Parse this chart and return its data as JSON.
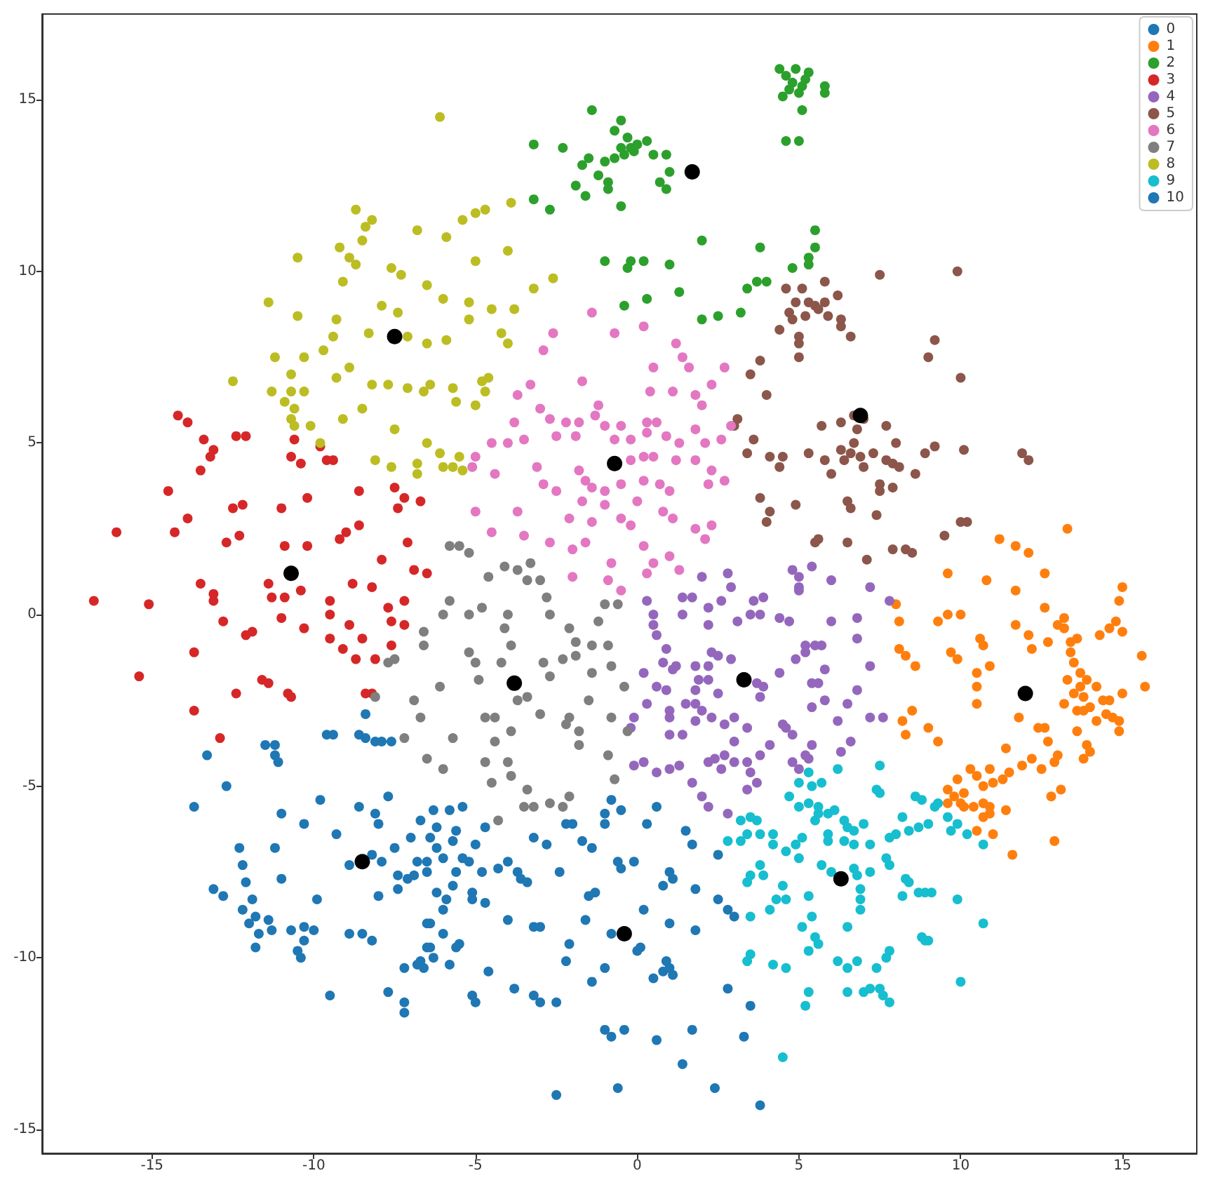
{
  "chart_data": {
    "type": "scatter",
    "xlim": [
      -18.4,
      17.3
    ],
    "ylim": [
      -15.7,
      17.5
    ],
    "xticks": [
      -15,
      -10,
      -5,
      0,
      5,
      10,
      15
    ],
    "yticks": [
      -15,
      -10,
      -5,
      0,
      5,
      10,
      15
    ],
    "grid": false,
    "legend": "top right",
    "marker": "circle",
    "series": [
      {
        "name": "0",
        "color": "#1f77b4",
        "x": [
          -8.4,
          -8.6,
          -8.4,
          -9.6,
          -9.4,
          -8.1,
          -7.9,
          -7.6,
          -11.2,
          -11.5,
          -11.2,
          -11.1,
          -13.3,
          -12.7,
          -13.7,
          -11.0,
          -10.3,
          -9.8,
          -9.3,
          -8.6,
          -8.1,
          -7.7,
          -8.0,
          -7.0,
          -6.7,
          -7.5,
          -12.3,
          -11.2,
          -12.2,
          -12.1,
          -11.0,
          -8.9,
          -8.2,
          -7.9,
          -6.8,
          -6.5,
          -6.9,
          -7.4,
          -7.1,
          -7.4,
          -8.0,
          -13.1,
          -12.8,
          -12.2,
          -11.9,
          -11.8,
          -12.0,
          -11.7,
          -11.8,
          -11.3,
          -11.4,
          -10.7,
          -10.3,
          -10.0,
          -10.5,
          -10.4,
          -10.3,
          -9.9,
          -8.9,
          -8.5,
          -8.2,
          -9.5,
          -7.7,
          -7.2,
          -7.2,
          -7.2,
          -6.8,
          -6.6,
          -6.5,
          -6.5,
          -6.3,
          -5.8,
          -5.4,
          -6.2,
          -5.7,
          -5.6,
          -5.0,
          -4.7,
          -6.4,
          -6.2,
          -6.0,
          -6.5,
          -5.4,
          -5.2,
          -4.8,
          -5.6,
          -5.7,
          -5.1,
          -6.2,
          -5.9,
          -6.0,
          -5.1,
          -4.7,
          -6.4,
          -6.0,
          -6.4,
          -5.5,
          -5.6,
          -6.7,
          -6.3,
          -5.8,
          -5.1,
          -5.0,
          -4.6
        ],
        "values": [
          -2.9,
          -3.5,
          -3.6,
          -3.5,
          -3.5,
          -3.7,
          -3.7,
          -3.7,
          -3.8,
          -3.8,
          -4.1,
          -4.3,
          -4.1,
          -5.0,
          -5.6,
          -5.8,
          -6.1,
          -5.4,
          -6.4,
          -5.6,
          -5.8,
          -5.3,
          -6.1,
          -6.5,
          -6.0,
          -6.8,
          -6.8,
          -6.8,
          -7.3,
          -7.8,
          -7.7,
          -7.3,
          -7.0,
          -7.2,
          -7.2,
          -7.5,
          -7.6,
          -7.6,
          -7.7,
          -8.0,
          -8.2,
          -8.0,
          -8.2,
          -8.6,
          -8.3,
          -8.8,
          -9.0,
          -9.3,
          -9.7,
          -9.2,
          -8.9,
          -9.2,
          -9.1,
          -9.2,
          -9.8,
          -10.0,
          -9.5,
          -8.3,
          -9.3,
          -9.3,
          -9.5,
          -11.1,
          -11.0,
          -11.3,
          -11.6,
          -10.3,
          -10.2,
          -10.3,
          -9.0,
          -9.7,
          -5.7,
          -5.7,
          -5.6,
          -6.2,
          -6.6,
          -6.3,
          -6.7,
          -6.2,
          -6.5,
          -6.8,
          -7.1,
          -7.2,
          -7.1,
          -7.2,
          -7.5,
          -7.5,
          -7.9,
          -8.1,
          -8.1,
          -8.3,
          -8.6,
          -8.3,
          -8.4,
          -9.0,
          -9.3,
          -9.7,
          -9.6,
          -9.7,
          -10.1,
          -10.0,
          -10.2,
          -11.1,
          -11.3,
          -10.4
        ]
      },
      {
        "name": "1",
        "color": "#ff7f0e",
        "x": [
          13.3,
          11.2,
          11.7,
          12.1,
          9.6,
          10.8,
          12.6,
          11.7,
          15.0,
          14.9,
          8.0,
          8.1,
          9.3,
          9.6,
          10.0,
          12.6,
          11.7,
          12.1,
          12.2,
          13.0,
          13.2,
          13.2,
          13.4,
          13.4,
          13.5,
          13.7,
          13.9,
          12.7,
          13.6,
          14.3,
          14.6,
          14.8,
          15.0,
          15.6,
          15.7,
          9.7,
          9.9,
          10.6,
          10.7,
          10.9,
          10.5,
          10.5,
          10.5,
          8.1,
          8.3,
          8.6,
          11.8,
          12.6,
          13.2,
          13.3,
          13.5,
          13.7,
          13.8,
          13.6,
          13.8,
          14.2,
          14.0,
          14.4,
          14.6,
          14.2,
          14.5,
          14.7,
          14.9,
          14.9,
          15.0,
          8.2,
          8.5,
          8.3,
          9.0,
          9.3,
          12.4,
          12.7,
          13.6,
          13.9,
          14.0,
          13.8,
          11.4,
          13.0,
          12.9,
          12.2,
          11.9,
          12.5,
          13.1,
          12.8,
          10.3,
          10.9,
          11.3,
          11.5,
          11.0,
          10.5,
          10.7,
          10.1,
          9.9,
          9.6,
          9.8,
          9.6,
          10.0,
          10.1,
          10.4,
          10.7,
          10.9,
          10.9,
          10.7,
          11.4,
          10.5,
          11.0,
          12.9,
          11.6
        ],
        "values": [
          2.5,
          2.2,
          2.0,
          1.8,
          1.2,
          1.0,
          1.2,
          0.7,
          0.8,
          0.4,
          0.3,
          -0.2,
          -0.2,
          0.0,
          0.0,
          0.2,
          -0.3,
          -0.6,
          -1.0,
          -0.3,
          -0.1,
          -0.4,
          -0.8,
          -1.1,
          -1.4,
          -1.7,
          -1.9,
          -0.8,
          -0.7,
          -0.6,
          -0.4,
          -0.2,
          -0.5,
          -1.2,
          -2.1,
          -1.1,
          -1.3,
          -0.7,
          -0.9,
          -1.5,
          -1.7,
          -2.1,
          -2.6,
          -1.0,
          -1.2,
          -1.5,
          -3.0,
          -3.3,
          -2.6,
          -1.9,
          -2.3,
          -2.1,
          -2.4,
          -2.8,
          -2.8,
          -2.1,
          -2.7,
          -2.5,
          -2.5,
          -3.1,
          -2.9,
          -3.0,
          -3.4,
          -3.1,
          -2.3,
          -3.1,
          -2.8,
          -3.5,
          -3.3,
          -3.7,
          -3.3,
          -3.7,
          -3.4,
          -3.8,
          -4.0,
          -4.2,
          -3.9,
          -4.1,
          -4.3,
          -4.2,
          -4.4,
          -4.5,
          -5.1,
          -5.3,
          -4.5,
          -4.5,
          -4.8,
          -4.6,
          -4.9,
          -4.7,
          -5.0,
          -5.2,
          -4.8,
          -5.1,
          -5.3,
          -5.5,
          -5.5,
          -5.6,
          -5.6,
          -5.5,
          -5.6,
          -5.8,
          -5.9,
          -5.7,
          -6.3,
          -6.4,
          -6.6,
          -7.0
        ]
      },
      {
        "name": "2",
        "color": "#2ca02c",
        "x": [
          -1.4,
          -0.5,
          -0.7,
          -0.3,
          0.3,
          -0.1,
          -0.4,
          -0.7,
          -1.0,
          0.5,
          0.9,
          1.0,
          0.7,
          0.9,
          -2.3,
          -3.2,
          -1.5,
          -1.7,
          -1.2,
          -0.9,
          -1.9,
          -0.9,
          -1.6,
          -0.5,
          -3.2,
          -2.7,
          -1.0,
          -0.2,
          0.2,
          -0.3,
          1.0,
          2.0,
          1.3,
          0.3,
          -0.4,
          2.0,
          2.5,
          3.2,
          3.8,
          3.7,
          3.4,
          4.0,
          4.8,
          5.3,
          5.5,
          5.5,
          4.6,
          4.9,
          5.1,
          4.5,
          5.1,
          4.6,
          5.0,
          5.3,
          4.4,
          5.8,
          5.8,
          5.3,
          4.8,
          5.0,
          4.7,
          5.2,
          -0.5,
          0.0,
          -0.2
        ],
        "values": [
          14.7,
          14.4,
          14.1,
          13.9,
          13.8,
          13.5,
          13.4,
          13.3,
          13.2,
          13.4,
          13.4,
          12.9,
          12.6,
          12.4,
          13.6,
          13.7,
          13.3,
          13.1,
          12.8,
          12.6,
          12.5,
          12.4,
          12.2,
          11.9,
          12.1,
          11.8,
          10.3,
          10.3,
          10.3,
          10.1,
          10.2,
          10.9,
          9.4,
          9.2,
          9.0,
          8.6,
          8.7,
          8.8,
          10.7,
          9.7,
          9.5,
          9.7,
          10.1,
          10.4,
          10.7,
          11.2,
          15.7,
          15.9,
          15.4,
          15.1,
          14.7,
          13.8,
          13.8,
          15.8,
          15.9,
          15.4,
          15.2,
          10.2,
          15.5,
          15.2,
          15.3,
          15.6,
          13.6,
          13.7,
          13.6
        ]
      },
      {
        "name": "3",
        "color": "#d62728",
        "x": [
          -14.2,
          -13.9,
          -13.4,
          -13.1,
          -13.2,
          -13.5,
          -12.4,
          -12.1,
          -10.6,
          -10.7,
          -10.4,
          -9.8,
          -9.6,
          -9.4,
          -14.5,
          -12.5,
          -12.2,
          -11.0,
          -10.2,
          -8.6,
          -7.5,
          -7.2,
          -7.4,
          -6.7,
          -13.9,
          -16.1,
          -14.3,
          -12.7,
          -12.3,
          -10.9,
          -10.2,
          -9.2,
          -9.0,
          -8.6,
          -7.1,
          -7.9,
          -6.9,
          -6.5,
          -11.4,
          -13.5,
          -8.8,
          -8.2,
          -16.8,
          -15.1,
          -13.1,
          -13.1,
          -12.8,
          -12.1,
          -11.9,
          -13.7,
          -15.4,
          -11.6,
          -11.4,
          -12.4,
          -10.8,
          -10.7,
          -13.7,
          -12.9,
          -11.3,
          -10.9,
          -11.0,
          -10.3,
          -9.5,
          -9.5,
          -9.5,
          -9.1,
          -8.7,
          -8.9,
          -8.5,
          -8.1,
          -7.6,
          -7.6,
          -7.2,
          -7.7,
          -7.2,
          -8.4,
          -8.2,
          -10.4
        ],
        "values": [
          5.8,
          5.6,
          5.1,
          4.8,
          4.6,
          4.2,
          5.2,
          5.2,
          5.1,
          4.6,
          4.4,
          4.9,
          4.5,
          4.5,
          3.6,
          3.1,
          3.2,
          3.1,
          3.4,
          3.6,
          3.7,
          3.4,
          3.1,
          3.3,
          2.8,
          2.4,
          2.4,
          2.1,
          2.3,
          2.0,
          2.0,
          2.2,
          2.4,
          2.6,
          2.1,
          1.6,
          1.3,
          1.2,
          0.9,
          0.9,
          0.9,
          0.8,
          0.4,
          0.3,
          0.4,
          0.6,
          -0.2,
          -0.6,
          -0.5,
          -1.1,
          -1.8,
          -1.9,
          -2.0,
          -2.3,
          -2.3,
          -2.4,
          -2.8,
          -3.6,
          0.5,
          0.5,
          -0.1,
          -0.4,
          0.0,
          0.4,
          -0.7,
          -1.0,
          -1.3,
          -0.3,
          -0.7,
          -1.3,
          -0.9,
          -0.2,
          -0.3,
          0.2,
          0.4,
          -2.3,
          -2.3,
          0.7
        ]
      },
      {
        "name": "4",
        "color": "#9467bd",
        "x": [
          0.3,
          0.5,
          0.5,
          0.6,
          1.4,
          1.7,
          1.4,
          2.2,
          2.2,
          2.6,
          3.1,
          3.5,
          3.8,
          3.9,
          3.6,
          4.4,
          4.7,
          5.0,
          0.9,
          0.2,
          0.8,
          1.2,
          1.1,
          0.6,
          0.9,
          0.3,
          1.0,
          1.0,
          -0.1,
          -0.2,
          1.0,
          1.4,
          1.8,
          1.8,
          1.9,
          2.2,
          2.2,
          1.8,
          1.5,
          1.8,
          2.0,
          2.5,
          2.3,
          2.7,
          3.0,
          3.4,
          3.7,
          3.9,
          3.8,
          2.9,
          2.5,
          2.3,
          4.4,
          4.9,
          5.2,
          5.4,
          5.4,
          4.6,
          4.5,
          4.8,
          3.0,
          2.7,
          2.4,
          2.2,
          3.0,
          3.4,
          3.5,
          3.8,
          4.1,
          3.7,
          3.4,
          2.6,
          1.3,
          1.7,
          0.6,
          1.0,
          0.2,
          -0.1,
          2.0,
          2.2,
          2.8,
          4.8,
          5.0,
          5.2,
          5.4,
          5.5,
          6.0,
          7.2,
          7.8,
          6.0,
          6.8,
          6.8,
          5.7,
          5.8,
          7.2,
          5.6,
          6.8,
          5.8,
          6.5,
          7.2,
          7.6,
          6.2,
          6.6,
          6.3,
          5.3,
          5.2,
          2.0,
          2.8,
          2.9,
          4.8,
          5.0,
          5.4,
          5.0
        ],
        "values": [
          0.4,
          0.0,
          -0.3,
          -0.6,
          0.5,
          0.5,
          0.0,
          0.2,
          -0.3,
          0.4,
          -0.2,
          0.0,
          0.0,
          0.5,
          0.4,
          -0.1,
          -0.2,
          0.7,
          -1.0,
          -1.7,
          -1.4,
          -1.5,
          -1.6,
          -2.1,
          -2.2,
          -2.6,
          -2.8,
          -3.0,
          -3.0,
          -3.3,
          -3.5,
          -3.5,
          -3.1,
          -2.2,
          -1.9,
          -1.9,
          -1.5,
          -1.5,
          -2.6,
          -2.6,
          -2.8,
          -2.3,
          -3.0,
          -3.2,
          -3.0,
          -3.3,
          -2.0,
          -2.1,
          -2.4,
          -1.3,
          -1.2,
          -1.1,
          -1.7,
          -1.3,
          -0.9,
          -2.7,
          -2.0,
          -3.3,
          -3.2,
          -3.5,
          -3.7,
          -4.1,
          -4.2,
          -4.3,
          -4.3,
          -4.3,
          -4.6,
          -4.1,
          -3.8,
          -4.9,
          -5.1,
          -4.5,
          -4.4,
          -4.9,
          -4.6,
          -4.5,
          -4.3,
          -4.4,
          -5.3,
          -5.6,
          -5.8,
          -4.3,
          -4.5,
          -4.1,
          -3.8,
          -0.9,
          1.0,
          0.8,
          0.4,
          -0.2,
          -0.1,
          -0.7,
          -0.9,
          -1.6,
          -1.5,
          -2.0,
          -2.2,
          -2.5,
          -2.6,
          -3.0,
          -3.0,
          -3.1,
          -3.7,
          -4.0,
          -4.2,
          -1.1,
          1.1,
          1.2,
          0.8,
          1.3,
          1.1,
          1.4,
          0.8
        ]
      },
      {
        "name": "5",
        "color": "#8c564b",
        "x": [
          4.6,
          5.1,
          4.9,
          5.3,
          5.5,
          4.7,
          4.8,
          4.4,
          5.2,
          5.0,
          5.0,
          5.0,
          3.8,
          3.5,
          4.0,
          3.1,
          3.0,
          3.6,
          3.4,
          4.1,
          4.5,
          4.4,
          5.3,
          3.8,
          4.1,
          4.0,
          4.9,
          5.5,
          7.5,
          9.9,
          5.8,
          6.2,
          5.8,
          5.6,
          5.9,
          6.3,
          6.3,
          6.6,
          9.2,
          9.0,
          10.0,
          5.7,
          6.3,
          6.7,
          7.0,
          7.7,
          8.0,
          6.8,
          6.7,
          6.6,
          6.9,
          7.3,
          6.3,
          5.8,
          6.4,
          7.0,
          7.7,
          7.9,
          8.1,
          8.6,
          6.0,
          8.9,
          9.2,
          10.1,
          11.9,
          12.1,
          7.5,
          7.5,
          7.9,
          6.5,
          6.6,
          7.4,
          10.0,
          10.2,
          9.5,
          5.6,
          6.5,
          7.9,
          8.3,
          8.5,
          7.1
        ],
        "values": [
          9.5,
          9.5,
          9.1,
          9.1,
          9.0,
          8.8,
          8.6,
          8.3,
          8.7,
          8.1,
          7.9,
          7.5,
          7.4,
          7.0,
          6.4,
          5.7,
          5.5,
          5.1,
          4.7,
          4.6,
          4.6,
          4.3,
          4.7,
          3.4,
          3.0,
          2.7,
          3.2,
          2.1,
          9.9,
          10.0,
          9.7,
          9.3,
          9.1,
          8.9,
          8.7,
          8.6,
          8.4,
          8.1,
          8.0,
          7.5,
          6.9,
          5.5,
          5.6,
          5.8,
          5.7,
          5.5,
          5.0,
          5.4,
          5.0,
          4.7,
          4.6,
          4.7,
          4.8,
          4.5,
          4.5,
          4.3,
          4.5,
          4.4,
          4.3,
          4.1,
          4.1,
          4.7,
          4.9,
          4.8,
          4.7,
          4.5,
          3.8,
          3.6,
          3.7,
          3.3,
          3.1,
          2.9,
          2.7,
          2.7,
          2.3,
          2.2,
          2.1,
          1.9,
          1.9,
          1.8,
          1.6
        ]
      },
      {
        "name": "6",
        "color": "#e377c2",
        "x": [
          -1.4,
          -0.7,
          0.2,
          -2.6,
          -2.9,
          1.2,
          0.5,
          1.4,
          1.6,
          2.7,
          -3.3,
          -3.7,
          -1.7,
          0.4,
          1.1,
          1.8,
          2.3,
          2.0,
          -1.2,
          -1.3,
          -3.0,
          -2.7,
          -3.8,
          -2.2,
          -1.8,
          -1.0,
          -0.5,
          0.3,
          0.6,
          1.8,
          2.9,
          -4.5,
          -4.0,
          -3.5,
          -2.5,
          -1.9,
          -0.7,
          -0.2,
          0.3,
          0.9,
          1.3,
          2.1,
          2.6,
          -5.0,
          -5.1,
          -4.4,
          -3.1,
          -1.8,
          -0.2,
          0.2,
          0.5,
          1.2,
          1.8,
          2.3,
          -2.9,
          -2.5,
          -1.6,
          -1.4,
          -1.0,
          -0.5,
          0.2,
          0.7,
          1.0,
          2.2,
          2.7,
          -1.7,
          -1.0,
          0.0,
          -5.0,
          -3.7,
          -0.5,
          0.8,
          1.1,
          -2.1,
          -1.4,
          -0.2,
          2.3,
          -4.5,
          -3.5,
          -2.7,
          -2.0,
          -1.6,
          0.2,
          1.0,
          2.1,
          0.5,
          -0.8,
          -2.0,
          -0.9,
          0.3,
          1.3,
          1.8,
          -0.5
        ],
        "values": [
          8.8,
          8.2,
          8.4,
          8.2,
          7.7,
          7.9,
          7.2,
          7.5,
          7.2,
          7.2,
          6.7,
          6.4,
          6.8,
          6.5,
          6.5,
          6.4,
          6.7,
          6.1,
          6.1,
          5.8,
          6.0,
          5.7,
          5.6,
          5.6,
          5.6,
          5.5,
          5.5,
          5.6,
          5.6,
          5.4,
          5.5,
          5.0,
          5.0,
          5.1,
          5.2,
          5.2,
          5.1,
          5.1,
          5.3,
          5.2,
          5.0,
          5.0,
          5.1,
          4.6,
          4.3,
          4.1,
          4.3,
          4.2,
          4.5,
          4.6,
          4.6,
          4.5,
          4.5,
          4.2,
          3.8,
          3.6,
          3.9,
          3.7,
          3.6,
          3.8,
          3.9,
          3.8,
          3.6,
          3.8,
          3.9,
          3.3,
          3.2,
          3.3,
          3.0,
          3.0,
          2.8,
          3.0,
          2.8,
          2.8,
          2.7,
          2.6,
          2.6,
          2.4,
          2.3,
          2.1,
          1.9,
          2.1,
          2.0,
          1.7,
          2.2,
          1.5,
          1.5,
          1.1,
          1.0,
          1.2,
          1.3,
          2.5,
          0.7
        ]
      },
      {
        "name": "7",
        "color": "#7f7f7f",
        "x": [
          -5.8,
          -6.0,
          -4.8,
          -6.6,
          -6.6,
          -5.2,
          -4.0,
          -4.1,
          -2.8,
          -2.7,
          -3.4,
          -2.1,
          -1.9,
          -1.2,
          -1.0,
          -0.6,
          -0.9,
          -1.4,
          -5.2,
          -5.0,
          -4.9,
          -4.2,
          -3.9,
          -2.9,
          -2.7,
          -2.3,
          -1.9,
          -1.4,
          -0.8,
          -0.4,
          -1.5,
          -2.1,
          -2.2,
          -1.8,
          -3.0,
          -3.7,
          -3.4,
          -4.4,
          -4.7,
          -4.4,
          -3.9,
          -5.7,
          -6.1,
          -6.7,
          -4.7,
          -4.0,
          -3.9,
          -6.0,
          -4.5,
          -3.4,
          -3.2,
          -2.7,
          -2.1,
          -2.3,
          -3.5,
          -1.8,
          -0.9,
          -0.7,
          -0.3,
          -4.3,
          -0.8,
          -5.8,
          -5.5,
          -5.2,
          -4.1,
          -3.7,
          -4.6,
          -3.3,
          -3.0,
          -7.7,
          -7.5,
          -8.1,
          -6.9,
          -7.2,
          -6.5
        ],
        "values": [
          0.4,
          0.0,
          0.2,
          -0.5,
          -0.9,
          0.0,
          0.0,
          -0.4,
          0.5,
          0.0,
          1.0,
          -0.4,
          -0.8,
          -0.2,
          0.3,
          0.3,
          -0.9,
          -0.9,
          -1.1,
          -1.4,
          -1.9,
          -1.4,
          -0.9,
          -1.4,
          -1.8,
          -1.3,
          -1.2,
          -1.7,
          -1.5,
          -2.1,
          -2.5,
          -3.0,
          -3.2,
          -3.4,
          -2.9,
          -2.5,
          -2.4,
          -3.0,
          -3.0,
          -3.7,
          -3.4,
          -3.6,
          -2.1,
          -3.0,
          -4.3,
          -4.3,
          -4.7,
          -4.5,
          -4.9,
          -5.1,
          -5.6,
          -5.5,
          -5.3,
          -5.6,
          -5.6,
          -3.8,
          -4.1,
          -4.8,
          -3.4,
          -6.0,
          -3.0,
          2.0,
          2.0,
          1.8,
          1.4,
          1.3,
          1.1,
          1.5,
          1.0,
          -1.4,
          -1.3,
          -2.4,
          -2.5,
          -3.6,
          -4.2
        ]
      },
      {
        "name": "8",
        "color": "#bcbd22",
        "x": [
          -8.7,
          -8.2,
          -8.4,
          -8.5,
          -6.8,
          -9.2,
          -8.9,
          -8.7,
          -10.5,
          -7.6,
          -7.3,
          -6.5,
          -9.1,
          -11.4,
          -10.5,
          -9.3,
          -7.9,
          -7.4,
          -9.4,
          -8.3,
          -7.1,
          -6.5,
          -9.7,
          -11.2,
          -10.3,
          -10.7,
          -8.9,
          -12.5,
          -11.3,
          -10.7,
          -10.3,
          -9.3,
          -8.2,
          -7.7,
          -7.1,
          -6.6,
          -10.9,
          -10.6,
          -10.7,
          -8.5,
          -9.1,
          -7.5,
          -10.6,
          -10.1,
          -9.8,
          -8.1,
          -6.8,
          -7.6,
          -6.5,
          -6.8,
          -6.1,
          -4.7,
          -3.9,
          -5.4,
          -5.0,
          -5.9,
          -4.0,
          -5.0,
          -6.0,
          -3.2,
          -2.6,
          -5.2,
          -4.5,
          -3.8,
          -5.2,
          -4.2,
          -5.9,
          -4.0,
          -6.4,
          -5.7,
          -4.8,
          -4.6,
          -4.7,
          -5.6,
          -5.0,
          -6.1,
          -5.5,
          -5.7,
          -5.4,
          -6.0
        ],
        "values": [
          11.8,
          11.5,
          11.3,
          10.9,
          11.2,
          10.7,
          10.4,
          10.2,
          10.4,
          10.1,
          9.9,
          9.6,
          9.7,
          9.1,
          8.7,
          8.6,
          9.0,
          8.8,
          8.1,
          8.2,
          8.1,
          7.9,
          7.7,
          7.5,
          7.5,
          7.0,
          7.2,
          6.8,
          6.5,
          6.5,
          6.5,
          6.9,
          6.7,
          6.7,
          6.6,
          6.5,
          6.2,
          6.0,
          5.7,
          6.0,
          5.7,
          5.4,
          5.5,
          5.5,
          5.0,
          4.5,
          4.4,
          4.3,
          5.0,
          4.1,
          14.5,
          11.8,
          12.0,
          11.5,
          11.7,
          11.0,
          10.6,
          10.3,
          9.2,
          9.5,
          9.8,
          9.1,
          8.9,
          8.9,
          8.6,
          8.2,
          8.0,
          7.9,
          6.7,
          6.6,
          6.8,
          6.9,
          6.5,
          6.2,
          6.1,
          4.7,
          4.6,
          4.3,
          4.2,
          4.3
        ]
      },
      {
        "name": "9",
        "color": "#17becf",
        "x": [
          5.3,
          5.0,
          4.7,
          5.0,
          5.3,
          5.5,
          3.2,
          3.5,
          3.7,
          3.4,
          3.8,
          2.8,
          3.2,
          4.2,
          4.2,
          5.1,
          4.9,
          4.6,
          5.0,
          3.8,
          3.5,
          3.9,
          3.4,
          4.5,
          4.3,
          4.6,
          4.1,
          5.3,
          5.4,
          5.1,
          5.5,
          5.3,
          3.5,
          3.5,
          3.4,
          4.2,
          4.6,
          5.3,
          5.2,
          4.5,
          7.5,
          6.2,
          5.4,
          5.7,
          7.4,
          7.5,
          8.6,
          8.8,
          9.3,
          9.2,
          5.6,
          5.6,
          5.9,
          6.1,
          6.4,
          6.5,
          7.0,
          6.7,
          8.2,
          8.4,
          8.7,
          9.0,
          9.6,
          9.7,
          9.9,
          10.2,
          10.7,
          5.9,
          5.9,
          6.4,
          6.7,
          7.2,
          7.8,
          8.0,
          5.7,
          6.0,
          6.7,
          6.8,
          7.2,
          7.7,
          7.8,
          8.3,
          8.4,
          8.2,
          8.7,
          8.9,
          9.1,
          6.9,
          6.9,
          6.9,
          9.9,
          6.5,
          5.6,
          8.8,
          9.0,
          8.9,
          10.7,
          6.2,
          6.5,
          6.8,
          7.4,
          7.8,
          7.7,
          6.5,
          7.0,
          7.2,
          7.5,
          7.6,
          7.8,
          10.0
        ],
        "values": [
          -4.6,
          -4.9,
          -5.3,
          -5.6,
          -5.5,
          -6.0,
          -6.0,
          -5.9,
          -6.0,
          -6.4,
          -6.4,
          -6.6,
          -6.6,
          -6.4,
          -6.7,
          -6.5,
          -6.7,
          -6.9,
          -7.1,
          -7.3,
          -7.6,
          -7.6,
          -7.8,
          -7.9,
          -8.3,
          -8.3,
          -8.6,
          -8.2,
          -8.8,
          -9.1,
          -9.4,
          -9.8,
          -8.8,
          -9.9,
          -10.1,
          -10.2,
          -10.3,
          -11.0,
          -11.4,
          -12.9,
          -4.4,
          -4.5,
          -5.0,
          -4.9,
          -5.1,
          -5.2,
          -5.3,
          -5.4,
          -5.5,
          -5.6,
          -5.6,
          -5.8,
          -5.8,
          -5.7,
          -6.0,
          -6.2,
          -6.1,
          -6.3,
          -5.9,
          -6.3,
          -6.2,
          -6.1,
          -5.9,
          -6.3,
          -6.1,
          -6.4,
          -6.7,
          -6.4,
          -6.6,
          -6.6,
          -6.7,
          -6.7,
          -6.5,
          -6.4,
          -7.3,
          -7.5,
          -7.4,
          -7.6,
          -7.5,
          -7.1,
          -7.3,
          -7.7,
          -7.8,
          -8.2,
          -8.1,
          -8.1,
          -8.1,
          -8.0,
          -8.3,
          -8.6,
          -8.3,
          -9.1,
          -9.6,
          -9.4,
          -9.5,
          -9.5,
          -9.0,
          -10.1,
          -10.3,
          -10.1,
          -10.3,
          -9.8,
          -10.0,
          -11.0,
          -11.0,
          -10.9,
          -10.9,
          -11.1,
          -11.3,
          -10.7
        ]
      },
      {
        "name": "10",
        "color": "#1f77b4",
        "x": [
          -2.2,
          -2.0,
          -3.2,
          -2.8,
          -4.0,
          -4.3,
          -3.7,
          -3.6,
          -3.4,
          -2.4,
          -1.7,
          -1.4,
          -0.8,
          -1.0,
          -0.5,
          -1.0,
          0.6,
          0.3,
          -0.6,
          -0.5,
          -0.1,
          1.0,
          1.1,
          0.8,
          1.5,
          1.7,
          1.8,
          2.5,
          2.5,
          -1.5,
          -1.3,
          -1.6,
          -2.1,
          -4.0,
          -3.2,
          -3.0,
          -2.2,
          -3.8,
          -3.2,
          -3.0,
          -2.5,
          -1.4,
          -1.0,
          -0.8,
          0.2,
          0.1,
          0.0,
          1.0,
          1.8,
          0.8,
          1.0,
          1.1,
          0.5,
          0.9,
          2.8,
          3.0,
          2.8,
          3.5,
          3.3,
          -1.0,
          -0.8,
          -0.4,
          0.6,
          1.7,
          1.4,
          2.4,
          3.8,
          -0.6,
          -2.5
        ],
        "values": [
          -6.1,
          -6.1,
          -6.5,
          -6.7,
          -7.2,
          -7.4,
          -7.5,
          -7.7,
          -7.8,
          -7.5,
          -6.6,
          -6.8,
          -5.4,
          -5.8,
          -5.7,
          -6.1,
          -5.6,
          -6.1,
          -7.2,
          -7.4,
          -7.2,
          -7.5,
          -7.7,
          -7.9,
          -6.3,
          -6.7,
          -8.0,
          -7.0,
          -8.3,
          -8.2,
          -8.1,
          -8.9,
          -9.6,
          -8.9,
          -9.1,
          -9.1,
          -10.1,
          -10.9,
          -11.1,
          -11.3,
          -11.3,
          -10.7,
          -10.3,
          -9.3,
          -8.6,
          -9.7,
          -9.8,
          -9.0,
          -9.2,
          -10.4,
          -10.3,
          -10.5,
          -10.6,
          -10.1,
          -8.6,
          -8.8,
          -10.9,
          -11.4,
          -12.3,
          -12.1,
          -12.3,
          -12.1,
          -12.4,
          -12.1,
          -13.1,
          -13.8,
          -14.3,
          -13.8,
          -14.0
        ]
      },
      {
        "color": "#000000",
        "x": [
          1.7,
          -7.5,
          -0.7,
          6.9,
          -10.7,
          -3.8,
          3.3,
          12.0,
          -8.5,
          -0.4,
          6.3
        ],
        "values": [
          12.9,
          8.1,
          4.4,
          5.8,
          1.2,
          -2.0,
          -1.9,
          -2.3,
          -7.2,
          -9.3,
          -7.7
        ]
      }
    ]
  }
}
